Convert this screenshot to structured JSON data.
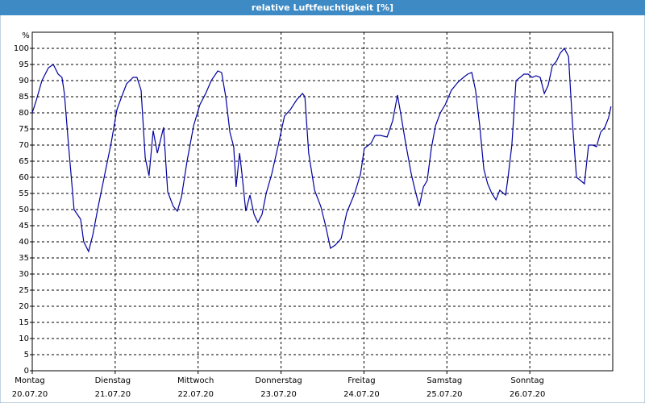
{
  "chart_data": {
    "type": "line",
    "title": "relative Luftfeuchtigkeit [%]",
    "y_label": "%",
    "x": [
      0,
      1.2,
      2.8,
      4.7,
      6.1,
      7.5,
      8.6,
      9.3,
      10.5,
      12.1,
      14,
      14.9,
      16.3,
      17.5,
      19.1,
      21,
      22.9,
      24.5,
      25.7,
      27.3,
      29.2,
      30.3,
      31.5,
      32.7,
      33.8,
      35,
      36.2,
      38,
      39.2,
      40.8,
      42,
      43.2,
      44.8,
      46.7,
      48.5,
      50.2,
      51.8,
      53.7,
      54.8,
      56,
      57.2,
      58.3,
      59,
      60,
      60.7,
      61.8,
      63,
      64.2,
      65.3,
      66.5,
      67.7,
      69.3,
      71.2,
      73,
      74.7,
      76.5,
      78.2,
      78.9,
      80,
      81.7,
      83.5,
      84.9,
      86.3,
      87.7,
      89.4,
      91,
      93.3,
      95,
      96.1,
      98,
      99.2,
      100.8,
      102.7,
      104.3,
      105.7,
      106.6,
      108,
      109.7,
      110.8,
      112,
      113.2,
      114.3,
      115.5,
      116.7,
      118.1,
      119.5,
      121.3,
      123.2,
      124.8,
      126,
      127.2,
      128.3,
      129.5,
      130.7,
      131.8,
      133,
      134.2,
      135.3,
      137,
      137.7,
      138.8,
      140,
      141.2,
      142.3,
      143.5,
      144.7,
      145.8,
      147,
      148.2,
      149.3,
      150.5,
      151.7,
      152.8,
      154,
      155.2,
      156.3,
      157.5,
      158.7,
      159.8,
      161,
      162.2,
      163.3,
      164.5,
      165.7,
      166.8,
      167.5
    ],
    "series": [
      {
        "name": "relative Luftfeuchtigkeit",
        "color": "#0000a0",
        "values": [
          80,
          84,
          90,
          94,
          95,
          92,
          91,
          86,
          70,
          50,
          47,
          40,
          37,
          42,
          51,
          61,
          71,
          81,
          84.5,
          89,
          91,
          91,
          87,
          66,
          60.5,
          74.5,
          67.5,
          75.5,
          55.5,
          51,
          49.5,
          54,
          65,
          76,
          82.5,
          86,
          90,
          93,
          92.5,
          85,
          74,
          69.5,
          57,
          67.5,
          61,
          49.5,
          54.5,
          48.5,
          46,
          48.5,
          55,
          61,
          70,
          79,
          81,
          84,
          86,
          85,
          67.5,
          56,
          51,
          45,
          38,
          39,
          41,
          49,
          55,
          61,
          69,
          70.5,
          73,
          73,
          72.5,
          77.5,
          85.5,
          80,
          71,
          61,
          56,
          51,
          57,
          59,
          69,
          76,
          80,
          82.5,
          87,
          89.5,
          91,
          92,
          92.5,
          87,
          76,
          62.5,
          58,
          55,
          53,
          56,
          54.5,
          60,
          70,
          90,
          91,
          92,
          92,
          91,
          91.5,
          91,
          86,
          88.5,
          94.5,
          96,
          98.5,
          100,
          97.5,
          77.5,
          60,
          59,
          58,
          70,
          70,
          69.5,
          74,
          75.5,
          78.5,
          82
        ]
      }
    ],
    "xlim": [
      0,
      168
    ],
    "xticks": [
      {
        "value": 0,
        "label": "Montag"
      },
      {
        "value": 24,
        "label": "Dienstag"
      },
      {
        "value": 48,
        "label": "Mittwoch"
      },
      {
        "value": 72,
        "label": "Donnerstag"
      },
      {
        "value": 96,
        "label": "Freitag"
      },
      {
        "value": 120,
        "label": "Samstag"
      },
      {
        "value": 144,
        "label": "Sonntag"
      }
    ],
    "xtick_dates": [
      "20.07.20",
      "21.07.20",
      "22.07.20",
      "23.07.20",
      "24.07.20",
      "25.07.20",
      "26.07.20"
    ],
    "ylim": [
      0,
      105
    ],
    "yticks": [
      0,
      5,
      10,
      15,
      20,
      25,
      30,
      35,
      40,
      45,
      50,
      55,
      60,
      65,
      70,
      75,
      80,
      85,
      90,
      95,
      100
    ],
    "grid": true
  }
}
